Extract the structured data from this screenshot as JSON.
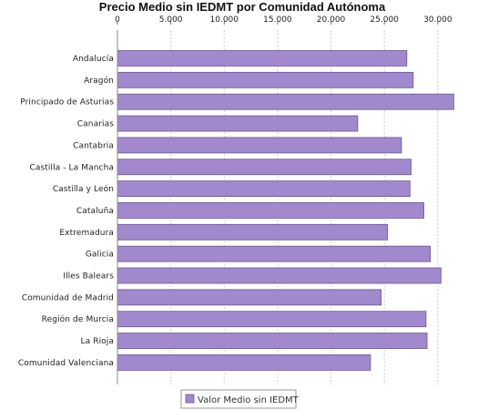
{
  "chart_data": {
    "type": "bar",
    "orientation": "horizontal",
    "title": "Precio Medio sin IEDMT por Comunidad Autónoma",
    "xlabel": "",
    "ylabel": "",
    "xlim": [
      0,
      33000
    ],
    "ticks": [
      0,
      5000,
      10000,
      15000,
      20000,
      25000,
      30000
    ],
    "tick_labels": [
      "0",
      "5.000",
      "10.000",
      "15.000",
      "20.000",
      "25.000",
      "30.000"
    ],
    "grid": true,
    "legend_position": "bottom",
    "categories": [
      "Andalucía",
      "Aragón",
      "Principado de Asturias",
      "Canarias",
      "Cantabria",
      "Castilla - La Mancha",
      "Castilla y León",
      "Cataluña",
      "Extremadura",
      "Galicia",
      "Illes Balears",
      "Comunidad de Madrid",
      "Región de Murcia",
      "La Rioja",
      "Comunidad Valenciana"
    ],
    "series": [
      {
        "name": "Valor Medio sin IEDMT",
        "color": "#a288cc",
        "values": [
          27100,
          27700,
          31500,
          22500,
          26600,
          27500,
          27400,
          28700,
          25300,
          29300,
          30300,
          24700,
          28900,
          29000,
          23700
        ]
      }
    ]
  }
}
